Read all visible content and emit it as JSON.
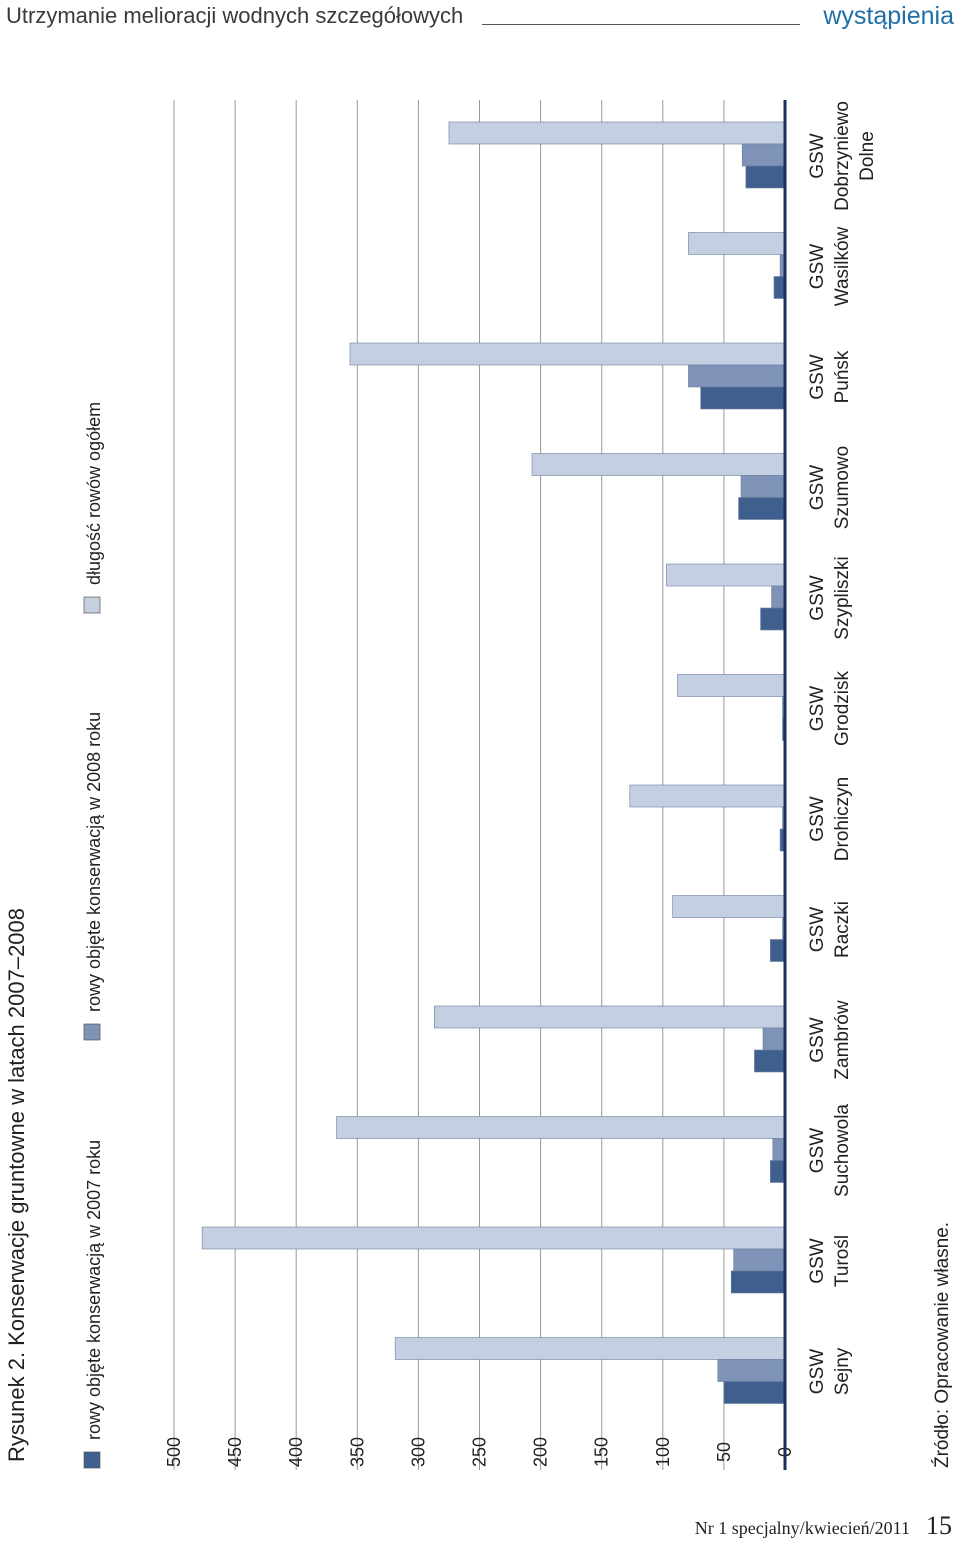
{
  "header": {
    "title": "Utrzymanie melioracji wodnych szczegółowych",
    "section": "wystąpienia"
  },
  "footer": {
    "issue": "Nr 1 specjalny/kwiecień/2011",
    "page": "15"
  },
  "figure": {
    "caption": "Rysunek 2. Konserwacje gruntowne w latach 2007–2008",
    "source": "Źródło: Opracowanie własne."
  },
  "colors": {
    "s2007": "#3f5f8e",
    "s2008": "#7f93b8",
    "total": "#c5cfe2",
    "axis": "#16315f",
    "grid": "#999999"
  },
  "chart_data": {
    "type": "bar",
    "orientation": "horizontal (page rotated 90°)",
    "title": "Rysunek 2. Konserwacje gruntowne w latach 2007–2008",
    "categories": [
      [
        "GSW",
        "Sejny"
      ],
      [
        "GSW",
        "Turośl"
      ],
      [
        "GSW",
        "Suchowola"
      ],
      [
        "GSW",
        "Zambrów"
      ],
      [
        "GSW",
        "Raczki"
      ],
      [
        "GSW",
        "Drohiczyn"
      ],
      [
        "GSW",
        "Grodzisk"
      ],
      [
        "GSW",
        "Szypliszki"
      ],
      [
        "GSW",
        "Szumowo"
      ],
      [
        "GSW",
        "Puńsk"
      ],
      [
        "GSW",
        "Wasilków"
      ],
      [
        "GSW",
        "Dobrzyniewo",
        "Dolne"
      ]
    ],
    "series": [
      {
        "name": "rowy objęte konserwacją w 2007 roku",
        "values": [
          50,
          44,
          12,
          25,
          12,
          4,
          2,
          20,
          38,
          69,
          9,
          32
        ]
      },
      {
        "name": "rowy objęte konserwacją w 2008 roku",
        "values": [
          55,
          42,
          10,
          18,
          2,
          2,
          2,
          11,
          36,
          79,
          4,
          35
        ]
      },
      {
        "name": "długość rowów ogółem",
        "values": [
          319,
          477,
          367,
          287,
          92,
          127,
          88,
          97,
          207,
          356,
          79,
          275
        ]
      }
    ],
    "axis_ticks": [
      0,
      50,
      100,
      150,
      200,
      250,
      300,
      350,
      400,
      450,
      500
    ],
    "ylim": [
      0,
      500
    ],
    "grid": true,
    "legend": "top"
  }
}
